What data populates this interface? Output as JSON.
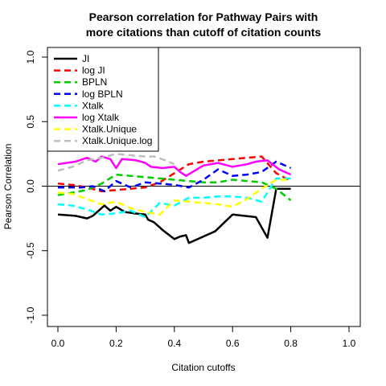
{
  "chart_data": {
    "type": "line",
    "title_lines": [
      "Pearson correlation for Pathway Pairs with",
      "more citations than cutoff of citation counts"
    ],
    "xlabel": "Citation cutoffs",
    "ylabel": "Pearson Correlation",
    "xlim": [
      0,
      1
    ],
    "ylim": [
      -1,
      1
    ],
    "x_ticks": [
      0.0,
      0.2,
      0.4,
      0.6,
      0.8,
      1.0
    ],
    "x_tick_labels": [
      "0.0",
      "0.2",
      "0.4",
      "0.6",
      "0.8",
      "1.0"
    ],
    "y_ticks": [
      -1.0,
      -0.5,
      0.0,
      0.5,
      1.0
    ],
    "y_tick_labels": [
      "-1.0",
      "-0.5",
      "0.0",
      "0.5",
      "1.0"
    ],
    "reference_line_y": 0,
    "grid": false,
    "legend_position": "top-left",
    "series": [
      {
        "name": "JI",
        "color": "#000000",
        "dash": "solid",
        "x": [
          0.0,
          0.06,
          0.1,
          0.12,
          0.16,
          0.18,
          0.2,
          0.23,
          0.26,
          0.3,
          0.31,
          0.33,
          0.36,
          0.4,
          0.42,
          0.44,
          0.45,
          0.54,
          0.6,
          0.68,
          0.72,
          0.75,
          0.8
        ],
        "y": [
          -0.22,
          -0.23,
          -0.25,
          -0.23,
          -0.15,
          -0.19,
          -0.16,
          -0.2,
          -0.21,
          -0.22,
          -0.26,
          -0.28,
          -0.34,
          -0.41,
          -0.39,
          -0.38,
          -0.44,
          -0.35,
          -0.22,
          -0.24,
          -0.4,
          -0.02,
          -0.02
        ]
      },
      {
        "name": "log JI",
        "color": "#ff0000",
        "dash": "dashed",
        "x": [
          0.0,
          0.05,
          0.1,
          0.15,
          0.2,
          0.25,
          0.3,
          0.35,
          0.4,
          0.45,
          0.5,
          0.55,
          0.6,
          0.65,
          0.7,
          0.75,
          0.8
        ],
        "y": [
          0.02,
          0.01,
          -0.01,
          -0.04,
          -0.03,
          -0.02,
          -0.01,
          0.03,
          0.1,
          0.17,
          0.19,
          0.2,
          0.21,
          0.22,
          0.23,
          0.1,
          0.04
        ]
      },
      {
        "name": "BPLN",
        "color": "#00cc00",
        "dash": "dashed",
        "x": [
          0.0,
          0.05,
          0.1,
          0.15,
          0.2,
          0.25,
          0.3,
          0.35,
          0.4,
          0.45,
          0.5,
          0.55,
          0.6,
          0.65,
          0.7,
          0.75,
          0.8
        ],
        "y": [
          -0.07,
          -0.05,
          -0.03,
          0.02,
          0.09,
          0.08,
          0.07,
          0.06,
          0.05,
          0.04,
          0.03,
          0.03,
          0.05,
          0.04,
          0.03,
          -0.02,
          -0.11
        ]
      },
      {
        "name": "log BPLN",
        "color": "#0000ff",
        "dash": "dashed",
        "x": [
          0.0,
          0.05,
          0.08,
          0.12,
          0.16,
          0.2,
          0.25,
          0.3,
          0.35,
          0.4,
          0.45,
          0.5,
          0.55,
          0.6,
          0.65,
          0.7,
          0.75,
          0.8
        ],
        "y": [
          -0.01,
          -0.01,
          -0.01,
          0.0,
          -0.04,
          0.04,
          -0.01,
          0.03,
          0.02,
          0.01,
          -0.01,
          0.05,
          0.13,
          0.08,
          0.09,
          0.11,
          0.19,
          0.14
        ]
      },
      {
        "name": "Xtalk",
        "color": "#00ffff",
        "dash": "dashed",
        "x": [
          0.0,
          0.05,
          0.1,
          0.15,
          0.2,
          0.25,
          0.3,
          0.35,
          0.4,
          0.45,
          0.5,
          0.55,
          0.6,
          0.65,
          0.7,
          0.75,
          0.8
        ],
        "y": [
          -0.14,
          -0.15,
          -0.18,
          -0.22,
          -0.21,
          -0.19,
          -0.24,
          -0.13,
          -0.15,
          -0.09,
          -0.09,
          -0.08,
          -0.08,
          -0.09,
          -0.12,
          0.06,
          0.06
        ]
      },
      {
        "name": "log Xtalk",
        "color": "#ff00ff",
        "dash": "solid",
        "x": [
          0.0,
          0.06,
          0.1,
          0.13,
          0.15,
          0.18,
          0.2,
          0.22,
          0.27,
          0.3,
          0.32,
          0.36,
          0.4,
          0.42,
          0.44,
          0.5,
          0.55,
          0.6,
          0.65,
          0.68,
          0.72,
          0.76,
          0.8
        ],
        "y": [
          0.17,
          0.19,
          0.22,
          0.19,
          0.23,
          0.21,
          0.14,
          0.21,
          0.2,
          0.18,
          0.15,
          0.14,
          0.15,
          0.11,
          0.08,
          0.16,
          0.18,
          0.15,
          0.17,
          0.19,
          0.2,
          0.13,
          0.09
        ]
      },
      {
        "name": "Xtalk.Unique",
        "color": "#ffff00",
        "dash": "dashed",
        "x": [
          0.0,
          0.05,
          0.1,
          0.15,
          0.2,
          0.25,
          0.3,
          0.35,
          0.4,
          0.45,
          0.5,
          0.55,
          0.6,
          0.65,
          0.7,
          0.75,
          0.8
        ],
        "y": [
          -0.05,
          -0.06,
          -0.1,
          -0.14,
          -0.12,
          -0.17,
          -0.2,
          -0.22,
          -0.11,
          -0.12,
          -0.13,
          -0.14,
          -0.16,
          -0.1,
          -0.02,
          0.05,
          0.05
        ]
      },
      {
        "name": "Xtalk.Unique.log",
        "color": "#bebebe",
        "dash": "dashed",
        "x": [
          0.0,
          0.05,
          0.1,
          0.15,
          0.2,
          0.25,
          0.3,
          0.33,
          0.37,
          0.4
        ],
        "y": [
          0.12,
          0.15,
          0.2,
          0.22,
          0.25,
          0.24,
          0.23,
          0.23,
          0.2,
          0.17
        ]
      }
    ]
  }
}
